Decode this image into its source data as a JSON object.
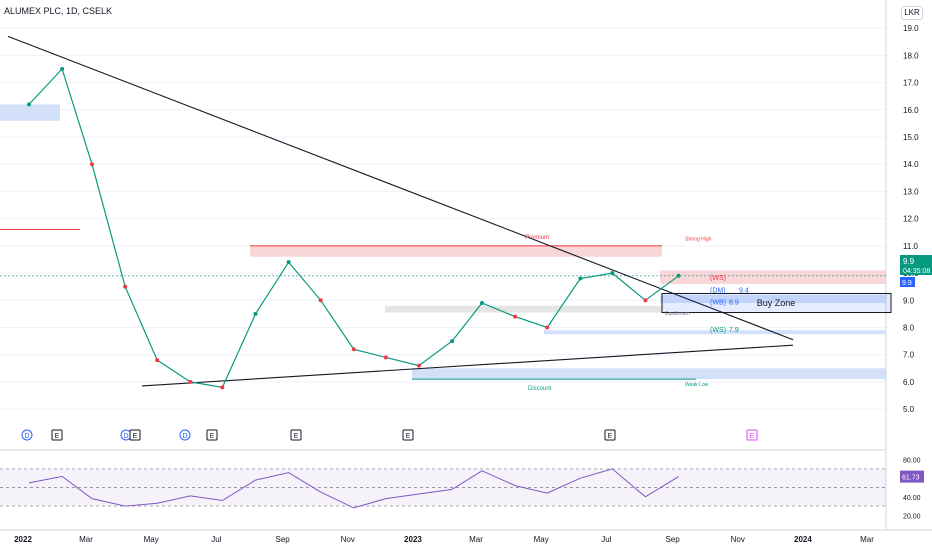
{
  "header": {
    "title": "ALUMEX PLC, 1D, CSELK",
    "currency": "LKR"
  },
  "price_labels": {
    "current": "9.9",
    "countdown": "04:35:08",
    "second": "9.9"
  },
  "annotations": {
    "buy_zone": "Buy Zone",
    "premium": "Premium",
    "discount": "Discount",
    "strong_high": "Strong High",
    "weak_low": "Weak Low",
    "equilibrium": "Equilibrium",
    "ws_top": "(WS)",
    "dm": "(DM)",
    "dm_val": "9.4",
    "wb": "(WB)",
    "wb_val": "8.9",
    "ws_low": "(WS)",
    "ws_low_val": "7.9"
  },
  "events": [
    "D",
    "E",
    "D",
    "E",
    "D",
    "E",
    "E",
    "E",
    "E",
    "E"
  ],
  "rsi": {
    "value": "61.73",
    "ticks": [
      "80.00",
      "60.00",
      "40.00",
      "20.00"
    ],
    "upper": 70,
    "mid": 50,
    "lower": 30,
    "ylim": [
      15,
      85
    ]
  },
  "colors": {
    "up": "#089981",
    "down": "#f23645",
    "rsi": "#7e57c2",
    "price_tag": "#2962ff",
    "supply_zone": "#f7c5c8",
    "demand_zone": "#c8d8f8",
    "buy_zone_border": "#131722"
  },
  "chart_data": {
    "type": "line",
    "title": "ALUMEX PLC, 1D, CSELK",
    "xlabel": "",
    "ylabel": "",
    "x": [
      "2022-01",
      "2022-02",
      "2022-03",
      "2022-04",
      "2022-05",
      "2022-06",
      "2022-07",
      "2022-08",
      "2022-09",
      "2022-10",
      "2022-11",
      "2022-12",
      "2023-01",
      "2023-02",
      "2023-03",
      "2023-04",
      "2023-05",
      "2023-06",
      "2023-07",
      "2023-08",
      "2023-09"
    ],
    "xticks": [
      "2022",
      "Mar",
      "May",
      "Jul",
      "Sep",
      "Nov",
      "2023",
      "Mar",
      "May",
      "Jul",
      "Sep",
      "Nov",
      "2024",
      "Mar"
    ],
    "yticks": [
      "19.0",
      "18.0",
      "17.0",
      "16.0",
      "15.0",
      "14.0",
      "13.0",
      "12.0",
      "11.0",
      "10.0",
      "9.0",
      "8.0",
      "7.0",
      "6.0",
      "5.0"
    ],
    "ylim": [
      4.6,
      19.3
    ],
    "series": [
      {
        "values": [
          16.2,
          17.5,
          14.0,
          9.5,
          6.8,
          6.0,
          5.8,
          8.5,
          10.4,
          9.0,
          7.2,
          6.9,
          6.6,
          7.5,
          8.9,
          8.4,
          8.0,
          9.8,
          10.0,
          9.0,
          9.9
        ]
      }
    ],
    "rsi_series": {
      "values": [
        55,
        62,
        38,
        30,
        33,
        41,
        36,
        58,
        66,
        45,
        28,
        38,
        43,
        48,
        68,
        52,
        44,
        60,
        70,
        40,
        61.73
      ]
    },
    "legend": "none",
    "grid": false
  }
}
